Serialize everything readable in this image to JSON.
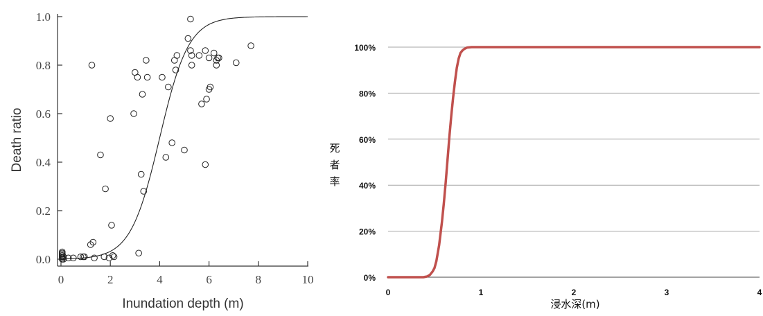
{
  "chart_data": [
    {
      "type": "scatter",
      "xlabel": "Inundation depth (m)",
      "ylabel": "Death ratio",
      "xlim": [
        0,
        10
      ],
      "ylim": [
        0,
        1
      ],
      "xticks": [
        "0",
        "2",
        "4",
        "6",
        "8",
        "10"
      ],
      "yticks": [
        "0.0",
        "0.2",
        "0.4",
        "0.6",
        "0.8",
        "1.0"
      ],
      "grid": false,
      "points": [
        [
          0.05,
          0.0
        ],
        [
          0.05,
          0.005
        ],
        [
          0.05,
          0.01
        ],
        [
          0.05,
          0.015
        ],
        [
          0.05,
          0.02
        ],
        [
          0.05,
          0.025
        ],
        [
          0.05,
          0.03
        ],
        [
          0.1,
          0.0
        ],
        [
          0.1,
          0.01
        ],
        [
          0.3,
          0.005
        ],
        [
          0.5,
          0.005
        ],
        [
          0.8,
          0.01
        ],
        [
          0.9,
          0.01
        ],
        [
          0.95,
          0.01
        ],
        [
          1.2,
          0.06
        ],
        [
          1.3,
          0.07
        ],
        [
          1.25,
          0.8
        ],
        [
          1.35,
          0.005
        ],
        [
          1.6,
          0.43
        ],
        [
          1.75,
          0.01
        ],
        [
          1.8,
          0.29
        ],
        [
          1.95,
          0.005
        ],
        [
          2.0,
          0.58
        ],
        [
          2.05,
          0.14
        ],
        [
          2.1,
          0.015
        ],
        [
          2.15,
          0.01
        ],
        [
          2.95,
          0.6
        ],
        [
          3.0,
          0.77
        ],
        [
          3.1,
          0.75
        ],
        [
          3.15,
          0.025
        ],
        [
          3.25,
          0.35
        ],
        [
          3.3,
          0.68
        ],
        [
          3.35,
          0.28
        ],
        [
          3.45,
          0.82
        ],
        [
          3.5,
          0.75
        ],
        [
          4.1,
          0.75
        ],
        [
          4.25,
          0.42
        ],
        [
          4.35,
          0.71
        ],
        [
          4.5,
          0.48
        ],
        [
          4.6,
          0.82
        ],
        [
          4.65,
          0.78
        ],
        [
          4.7,
          0.84
        ],
        [
          5.0,
          0.45
        ],
        [
          5.15,
          0.91
        ],
        [
          5.25,
          0.99
        ],
        [
          5.25,
          0.86
        ],
        [
          5.3,
          0.84
        ],
        [
          5.3,
          0.8
        ],
        [
          5.6,
          0.84
        ],
        [
          5.7,
          0.64
        ],
        [
          5.85,
          0.39
        ],
        [
          5.85,
          0.86
        ],
        [
          5.9,
          0.66
        ],
        [
          6.0,
          0.83
        ],
        [
          6.0,
          0.7
        ],
        [
          6.05,
          0.71
        ],
        [
          6.2,
          0.85
        ],
        [
          6.3,
          0.8
        ],
        [
          6.3,
          0.82
        ],
        [
          6.35,
          0.83
        ],
        [
          6.4,
          0.83
        ],
        [
          7.1,
          0.81
        ],
        [
          7.7,
          0.88
        ]
      ],
      "curve": {
        "kind": "logistic",
        "midpoint_m": 4.0,
        "steepness": 1.7
      }
    },
    {
      "type": "line",
      "xlabel": "浸水深(m)",
      "ylabel": "死者率",
      "xlim": [
        0,
        4
      ],
      "ylim": [
        0,
        100
      ],
      "xticks": [
        "0",
        "1",
        "2",
        "3",
        "4"
      ],
      "yticks": [
        "0%",
        "20%",
        "40%",
        "60%",
        "80%",
        "100%"
      ],
      "grid": true,
      "series": [
        {
          "color": "#c0504d",
          "x": [
            0,
            0.1,
            0.2,
            0.3,
            0.38,
            0.42,
            0.45,
            0.48,
            0.5,
            0.52,
            0.55,
            0.58,
            0.6,
            0.62,
            0.64,
            0.66,
            0.68,
            0.7,
            0.72,
            0.74,
            0.76,
            0.78,
            0.8,
            0.82,
            0.85,
            0.9,
            1.0,
            2.0,
            3.0,
            4.0
          ],
          "y": [
            0,
            0,
            0,
            0,
            0,
            0.3,
            1,
            2.5,
            4,
            7,
            14,
            24,
            32,
            41,
            51,
            61,
            70,
            78,
            85,
            91,
            95,
            97.5,
            98.5,
            99.2,
            99.8,
            100,
            100,
            100,
            100,
            100
          ]
        }
      ]
    }
  ]
}
